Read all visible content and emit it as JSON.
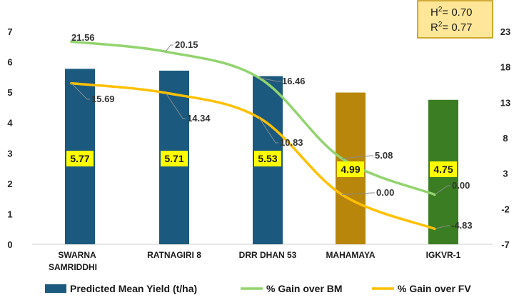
{
  "chart_data": {
    "type": "bar",
    "categories": [
      [
        "SWARNA",
        "SAMRIDDHI"
      ],
      [
        "RATNAGIRI 8"
      ],
      [
        "DRR DHAN 53"
      ],
      [
        "MAHAMAYA"
      ],
      [
        "IGKVR-1"
      ]
    ],
    "left_axis": {
      "ticks": [
        "0",
        "1",
        "2",
        "3",
        "4",
        "5",
        "6",
        "7"
      ],
      "ylim": [
        0,
        7
      ]
    },
    "right_axis": {
      "ticks": [
        "-7",
        "-2",
        "3",
        "8",
        "13",
        "18",
        "23"
      ],
      "ylim": [
        -7,
        23
      ]
    },
    "bar_series": {
      "name": "Predicted Mean Yield (t/ha)",
      "values": [
        5.77,
        5.71,
        5.53,
        4.99,
        4.75
      ],
      "labels": [
        "5.77",
        "5.71",
        "5.53",
        "4.99",
        "4.75"
      ],
      "colors": [
        "#1b5a7e",
        "#1b5a7e",
        "#1b5a7e",
        "#b8860b",
        "#3a7d22"
      ]
    },
    "line_series": [
      {
        "name": "% Gain over BM",
        "axis": "right",
        "color": "#92d36e",
        "values": [
          21.56,
          20.15,
          16.46,
          5.08,
          0.0
        ],
        "labels": [
          "21.56",
          "20.15",
          "16.46",
          "5.08",
          "0.00"
        ]
      },
      {
        "name": "% Gain over FV",
        "axis": "right",
        "color": "#ffc000",
        "values": [
          15.69,
          14.34,
          10.83,
          0.0,
          -4.83
        ],
        "labels": [
          "15.69",
          "14.34",
          "10.83",
          "0.00",
          "-4.83"
        ]
      }
    ],
    "stats_box": {
      "h2_label": "H",
      "h2_sup": "2",
      "h2_value": "= 0.70",
      "r2_label": "R",
      "r2_sup": "2",
      "r2_value": "= 0.77",
      "fill": "#ffe699",
      "border": "#c09000"
    },
    "legend_placement": "bottom",
    "grid": false
  }
}
